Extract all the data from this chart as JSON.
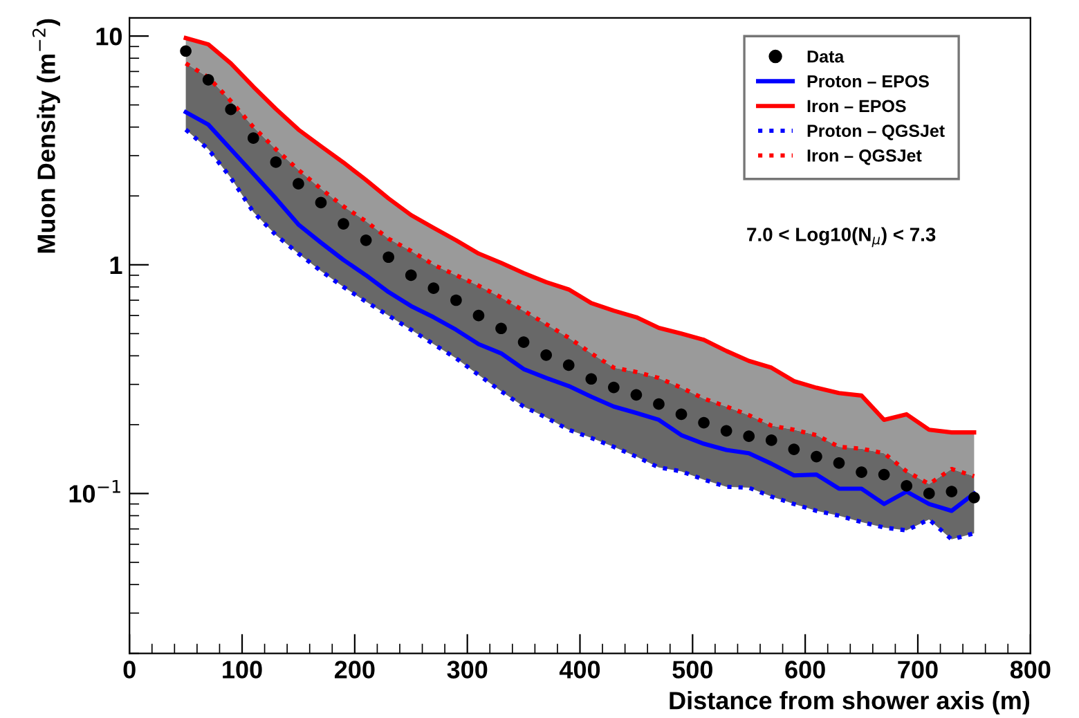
{
  "chart_data": {
    "type": "line",
    "xlabel": "Distance from shower axis (m)",
    "ylabel": "Muon Density (m$^{−2}$)",
    "x": [
      50,
      70,
      90,
      110,
      130,
      150,
      170,
      190,
      210,
      230,
      250,
      270,
      290,
      310,
      330,
      350,
      370,
      390,
      410,
      430,
      450,
      470,
      490,
      510,
      530,
      550,
      570,
      590,
      610,
      630,
      650,
      670,
      690,
      710,
      730,
      750
    ],
    "series": [
      {
        "name": "Data",
        "type": "scatter",
        "marker": "circle",
        "color": "#000000",
        "values": [
          8.6,
          6.44,
          4.78,
          3.58,
          2.81,
          2.26,
          1.87,
          1.51,
          1.28,
          1.08,
          0.9,
          0.79,
          0.7,
          0.6,
          0.527,
          0.459,
          0.403,
          0.364,
          0.317,
          0.291,
          0.27,
          0.246,
          0.222,
          0.204,
          0.188,
          0.178,
          0.171,
          0.156,
          0.145,
          0.136,
          0.124,
          0.121,
          0.108,
          0.1,
          0.102,
          0.096
        ]
      },
      {
        "name": "Proton – EPOS",
        "line_style": "solid",
        "color": "#0000ff",
        "values": [
          4.65,
          4.1,
          3.2,
          2.5,
          1.95,
          1.5,
          1.25,
          1.05,
          0.9,
          0.76,
          0.66,
          0.59,
          0.52,
          0.45,
          0.41,
          0.35,
          0.32,
          0.295,
          0.265,
          0.24,
          0.225,
          0.21,
          0.18,
          0.165,
          0.155,
          0.15,
          0.135,
          0.12,
          0.121,
          0.105,
          0.105,
          0.09,
          0.102,
          0.09,
          0.084,
          0.1
        ]
      },
      {
        "name": "Iron – EPOS",
        "line_style": "solid",
        "color": "#ff0000",
        "upper": [
          9.8,
          9.2,
          7.6,
          6.0,
          4.8,
          3.9,
          3.3,
          2.8,
          2.35,
          1.95,
          1.65,
          1.45,
          1.28,
          1.12,
          1.02,
          0.92,
          0.84,
          0.78,
          0.68,
          0.63,
          0.59,
          0.53,
          0.5,
          0.47,
          0.42,
          0.38,
          0.355,
          0.31,
          0.29,
          0.275,
          0.268,
          0.21,
          0.222,
          0.19,
          0.185,
          0.185
        ],
        "lower": [
          7.6,
          6.6,
          5.2,
          4.0,
          3.2,
          2.6,
          2.15,
          1.8,
          1.55,
          1.3,
          1.15,
          1.0,
          0.9,
          0.81,
          0.72,
          0.63,
          0.55,
          0.48,
          0.41,
          0.355,
          0.34,
          0.32,
          0.29,
          0.26,
          0.24,
          0.22,
          0.198,
          0.19,
          0.18,
          0.16,
          0.157,
          0.15,
          0.125,
          0.11,
          0.128,
          0.119
        ],
        "values": [
          9.8,
          9.2,
          7.6,
          6.0,
          4.8,
          3.9,
          3.3,
          2.8,
          2.35,
          1.95,
          1.65,
          1.45,
          1.28,
          1.12,
          1.02,
          0.92,
          0.84,
          0.78,
          0.68,
          0.63,
          0.59,
          0.53,
          0.5,
          0.47,
          0.42,
          0.38,
          0.355,
          0.31,
          0.29,
          0.275,
          0.268,
          0.21,
          0.222,
          0.19,
          0.185,
          0.185
        ]
      },
      {
        "name": "Proton – QGSJet",
        "line_style": "dotted",
        "color": "#0000ff",
        "values": [
          3.9,
          3.2,
          2.4,
          1.7,
          1.35,
          1.12,
          0.94,
          0.8,
          0.69,
          0.6,
          0.52,
          0.45,
          0.39,
          0.33,
          0.28,
          0.24,
          0.215,
          0.19,
          0.175,
          0.16,
          0.145,
          0.13,
          0.125,
          0.115,
          0.107,
          0.106,
          0.097,
          0.09,
          0.084,
          0.08,
          0.075,
          0.071,
          0.069,
          0.077,
          0.063,
          0.067
        ]
      },
      {
        "name": "Iron – QGSJet",
        "line_style": "dotted",
        "color": "#ff0000",
        "upper": [
          7.6,
          6.6,
          5.2,
          4.0,
          3.2,
          2.6,
          2.15,
          1.8,
          1.55,
          1.3,
          1.15,
          1.0,
          0.9,
          0.81,
          0.72,
          0.63,
          0.55,
          0.48,
          0.41,
          0.355,
          0.34,
          0.32,
          0.29,
          0.26,
          0.24,
          0.22,
          0.198,
          0.19,
          0.18,
          0.16,
          0.157,
          0.15,
          0.125,
          0.11,
          0.128,
          0.119
        ],
        "lower": [
          3.9,
          3.2,
          2.4,
          1.7,
          1.35,
          1.12,
          0.94,
          0.8,
          0.69,
          0.6,
          0.52,
          0.45,
          0.39,
          0.33,
          0.28,
          0.24,
          0.215,
          0.19,
          0.175,
          0.16,
          0.145,
          0.13,
          0.125,
          0.115,
          0.107,
          0.106,
          0.097,
          0.09,
          0.084,
          0.08,
          0.075,
          0.071,
          0.069,
          0.077,
          0.063,
          0.067
        ],
        "values": [
          7.6,
          6.6,
          5.2,
          4.0,
          3.2,
          2.6,
          2.15,
          1.8,
          1.55,
          1.3,
          1.15,
          1.0,
          0.9,
          0.81,
          0.72,
          0.63,
          0.55,
          0.48,
          0.41,
          0.355,
          0.34,
          0.32,
          0.29,
          0.26,
          0.24,
          0.22,
          0.198,
          0.19,
          0.18,
          0.16,
          0.157,
          0.15,
          0.125,
          0.11,
          0.128,
          0.119
        ]
      }
    ],
    "annotations": [
      "7.0 < Log10(N$_{μ}$) < 7.3"
    ],
    "log": "y",
    "xlim": [
      0,
      800
    ],
    "xticks": [
      0,
      100,
      200,
      300,
      400,
      500,
      600,
      700,
      800
    ],
    "ylim": [
      0.02,
      12
    ],
    "yticks": [
      {
        "value": 0.1,
        "label": "10$^{−1}$"
      },
      1,
      10
    ],
    "grid": false,
    "legend": "top right"
  }
}
